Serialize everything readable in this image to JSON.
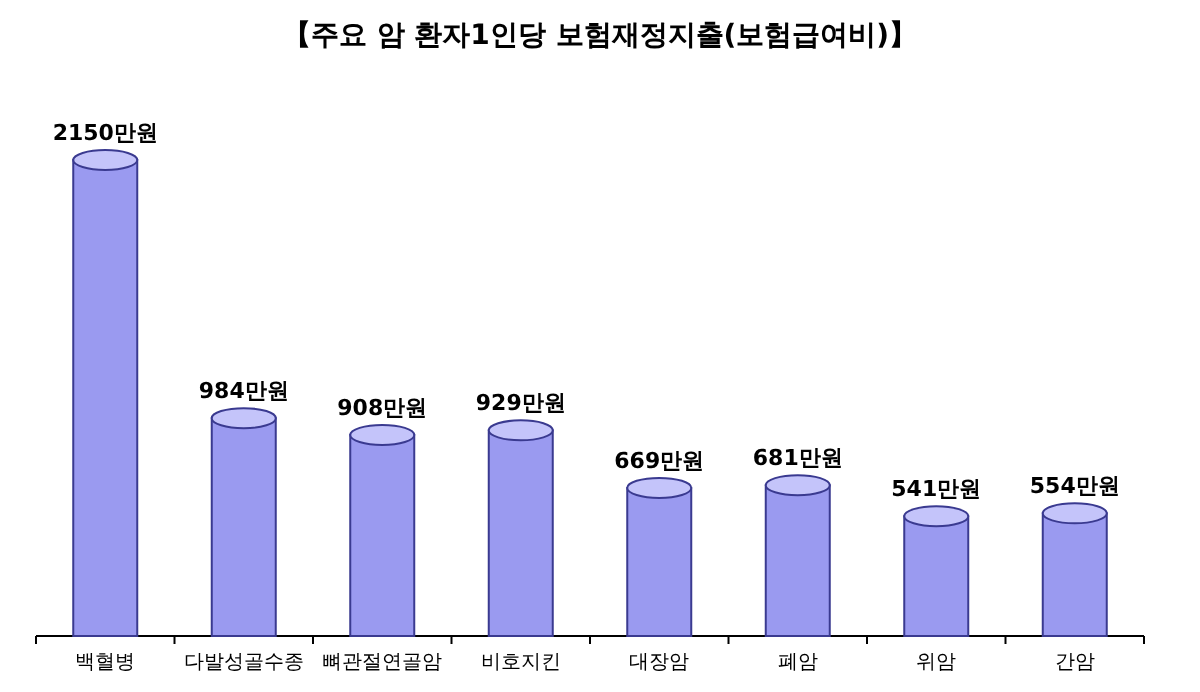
{
  "chart_data": {
    "type": "bar",
    "title": "【주요 암 환자1인당 보험재정지출(보험급여비)】",
    "categories": [
      "백혈병",
      "다발성골수종",
      "뼈관절연골암",
      "비호지킨",
      "대장암",
      "폐암",
      "위암",
      "간암"
    ],
    "values": [
      2150,
      984,
      908,
      929,
      669,
      681,
      541,
      554
    ],
    "value_labels": [
      "2150만원",
      "984만원",
      "908만원",
      "929만원",
      "669만원",
      "681만원",
      "541만원",
      "554만원"
    ],
    "color": "#9a9af0"
  }
}
